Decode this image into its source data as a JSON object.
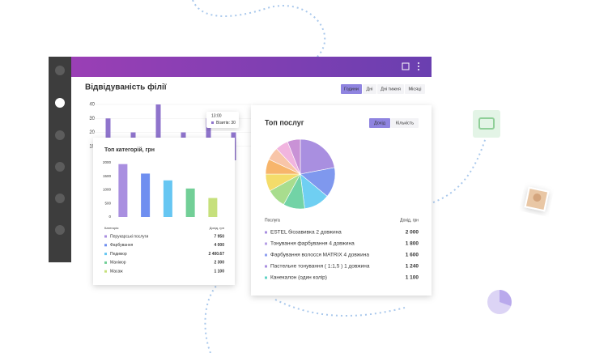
{
  "chart_data": [
    {
      "type": "bar",
      "title": "Відвідуваність філії",
      "values": [
        30,
        20,
        40,
        20,
        30,
        20
      ],
      "color": "#8f74cc",
      "ylim": [
        0,
        40
      ],
      "yticks": [
        10,
        20,
        30,
        40
      ],
      "grid": true
    },
    {
      "type": "bar",
      "title": "Топ категорій, грн",
      "values": [
        1950,
        1600,
        1350,
        1050,
        700
      ],
      "colors": [
        "#a98fe0",
        "#6f8ff0",
        "#66c6f2",
        "#72cf97",
        "#c6e07c"
      ],
      "ylim": [
        0,
        2000
      ],
      "yticks": [
        0,
        500,
        1000,
        1500,
        2000
      ],
      "grid": false
    },
    {
      "type": "pie",
      "title": "Топ послуг",
      "values": [
        22,
        14,
        12,
        10,
        9,
        8,
        7,
        6,
        6,
        6
      ],
      "colors": [
        "#a98fe0",
        "#7f98ee",
        "#6fcff2",
        "#72d3a6",
        "#a8dd8e",
        "#f4dc6a",
        "#f7b56b",
        "#f8c5a8",
        "#f1b5df",
        "#c992d6"
      ]
    }
  ],
  "visits_tabs": [
    "Години",
    "Дні",
    "Дні тижня",
    "Місяці"
  ],
  "tooltip": {
    "time": "13:00",
    "text": "Візитів: 30"
  },
  "categories_table": {
    "header": [
      "Категорія",
      "Дохід, грн"
    ],
    "rows": [
      [
        "Перукарські послуги",
        "7 950"
      ],
      [
        "Фарбування",
        "4 000"
      ],
      [
        "Педикюр",
        "2 400.67"
      ],
      [
        "Манікюр",
        "2 300"
      ],
      [
        "Масаж",
        "1 100"
      ]
    ]
  },
  "services_tabs": [
    "Дохід",
    "Кількість"
  ],
  "services_table": {
    "header": [
      "Послуга",
      "Дохід, грн"
    ],
    "rows": [
      [
        "ESTEL біозавивка 2 довжина",
        "2 000"
      ],
      [
        "Тонування фарбування 4 довжина",
        "1 800"
      ],
      [
        "Фарбування волосся MATRIX 4 довжина",
        "1 600"
      ],
      [
        "Пастельне тонування ( 1:1,5 ) 1 довжина",
        "1 240"
      ],
      [
        "Канекалон (один колір)",
        "1 100"
      ]
    ],
    "row_colors": [
      "#a98fe0",
      "#b6a0e6",
      "#8f9ff0",
      "#a98fe0",
      "#5fd3c5"
    ]
  }
}
